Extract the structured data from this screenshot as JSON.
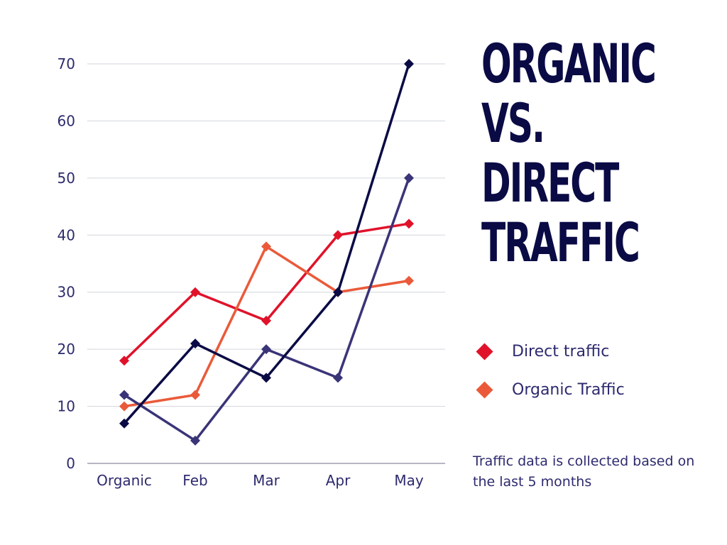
{
  "title_lines": [
    "ORGANIC",
    "VS.",
    "DIRECT",
    "TRAFFIC"
  ],
  "note": "Traffic data is collected based on the last 5 months",
  "legend": [
    {
      "label": "Direct traffic",
      "color": "#e0122a"
    },
    {
      "label": "Organic Traffic",
      "color": "#ea5a3a"
    }
  ],
  "chart_data": {
    "type": "line",
    "categories": [
      "Organic",
      "Feb",
      "Mar",
      "Apr",
      "May"
    ],
    "ylim": [
      0,
      70
    ],
    "yticks": [
      0,
      10,
      20,
      30,
      40,
      50,
      60,
      70
    ],
    "grid": true,
    "legend_position": "right",
    "series": [
      {
        "name": "Direct traffic",
        "color": "#e0122a",
        "values": [
          18,
          30,
          25,
          40,
          42
        ]
      },
      {
        "name": "Organic Traffic",
        "color": "#ea5a3a",
        "values": [
          10,
          12,
          38,
          30,
          32
        ]
      },
      {
        "color": "#3a3478",
        "values": [
          12,
          4,
          20,
          15,
          50
        ]
      },
      {
        "color": "#0a0a45",
        "values": [
          7,
          21,
          15,
          30,
          70
        ]
      }
    ]
  }
}
